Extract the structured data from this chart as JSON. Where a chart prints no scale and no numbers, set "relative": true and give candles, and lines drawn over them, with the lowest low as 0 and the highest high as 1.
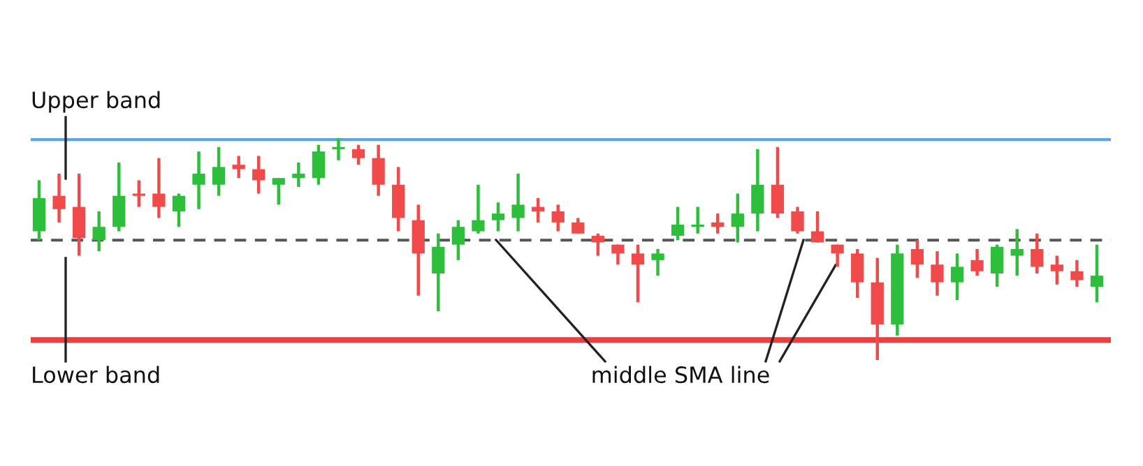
{
  "chart_data": {
    "type": "candlestick",
    "relative": true,
    "categories": [
      null,
      null,
      null,
      null,
      null,
      null,
      null,
      null,
      null,
      null,
      null,
      null,
      null,
      null,
      null,
      null,
      null,
      null,
      null,
      null,
      null,
      null,
      null,
      null,
      null,
      null,
      null,
      null,
      null,
      null,
      null,
      null,
      null,
      null,
      null,
      null,
      null,
      null,
      null,
      null,
      null,
      null,
      null,
      null,
      null,
      null,
      null,
      null,
      null,
      null,
      null,
      null,
      null,
      null
    ],
    "ohlc": [
      [
        0.58,
        0.81,
        0.54,
        0.73
      ],
      [
        0.74,
        0.84,
        0.62,
        0.68
      ],
      [
        0.69,
        0.84,
        0.47,
        0.55
      ],
      [
        0.54,
        0.67,
        0.49,
        0.6
      ],
      [
        0.6,
        0.89,
        0.58,
        0.74
      ],
      [
        0.75,
        0.81,
        0.69,
        0.74
      ],
      [
        0.75,
        0.91,
        0.64,
        0.69
      ],
      [
        0.67,
        0.75,
        0.6,
        0.74
      ],
      [
        0.79,
        0.94,
        0.68,
        0.84
      ],
      [
        0.79,
        0.96,
        0.74,
        0.87
      ],
      [
        0.88,
        0.92,
        0.82,
        0.86
      ],
      [
        0.86,
        0.92,
        0.75,
        0.81
      ],
      [
        0.79,
        0.82,
        0.7,
        0.82
      ],
      [
        0.82,
        0.89,
        0.78,
        0.84
      ],
      [
        0.82,
        0.97,
        0.79,
        0.94
      ],
      [
        0.95,
        1.0,
        0.9,
        0.96
      ],
      [
        0.95,
        0.97,
        0.88,
        0.91
      ],
      [
        0.91,
        0.97,
        0.74,
        0.79
      ],
      [
        0.79,
        0.87,
        0.58,
        0.64
      ],
      [
        0.63,
        0.7,
        0.29,
        0.48
      ],
      [
        0.39,
        0.57,
        0.22,
        0.51
      ],
      [
        0.52,
        0.63,
        0.45,
        0.6
      ],
      [
        0.58,
        0.79,
        0.57,
        0.63
      ],
      [
        0.63,
        0.71,
        0.58,
        0.66
      ],
      [
        0.64,
        0.84,
        0.58,
        0.7
      ],
      [
        0.69,
        0.73,
        0.62,
        0.67
      ],
      [
        0.67,
        0.7,
        0.58,
        0.62
      ],
      [
        0.62,
        0.64,
        0.57,
        0.57
      ],
      [
        0.56,
        0.57,
        0.47,
        0.53
      ],
      [
        0.52,
        0.52,
        0.43,
        0.48
      ],
      [
        0.48,
        0.52,
        0.26,
        0.43
      ],
      [
        0.45,
        0.5,
        0.38,
        0.48
      ],
      [
        0.56,
        0.69,
        0.54,
        0.61
      ],
      [
        0.6,
        0.69,
        0.57,
        0.61
      ],
      [
        0.62,
        0.66,
        0.57,
        0.6
      ],
      [
        0.6,
        0.75,
        0.53,
        0.66
      ],
      [
        0.66,
        0.95,
        0.58,
        0.79
      ],
      [
        0.79,
        0.96,
        0.64,
        0.66
      ],
      [
        0.67,
        0.69,
        0.57,
        0.58
      ],
      [
        0.58,
        0.67,
        0.53,
        0.53
      ],
      [
        0.52,
        0.52,
        0.42,
        0.48
      ],
      [
        0.48,
        0.5,
        0.28,
        0.35
      ],
      [
        0.35,
        0.46,
        0.0,
        0.16
      ],
      [
        0.16,
        0.52,
        0.11,
        0.48
      ],
      [
        0.5,
        0.54,
        0.37,
        0.43
      ],
      [
        0.43,
        0.49,
        0.29,
        0.35
      ],
      [
        0.35,
        0.48,
        0.27,
        0.42
      ],
      [
        0.45,
        0.5,
        0.38,
        0.4
      ],
      [
        0.39,
        0.52,
        0.33,
        0.51
      ],
      [
        0.47,
        0.59,
        0.38,
        0.5
      ],
      [
        0.5,
        0.57,
        0.39,
        0.42
      ],
      [
        0.43,
        0.47,
        0.34,
        0.4
      ],
      [
        0.4,
        0.45,
        0.33,
        0.36
      ],
      [
        0.33,
        0.52,
        0.26,
        0.38
      ]
    ],
    "colors": [
      "#2dbe3b",
      "#f04a4a",
      "#f04a4a",
      "#2dbe3b",
      "#2dbe3b",
      "#f04a4a",
      "#f04a4a",
      "#2dbe3b",
      "#2dbe3b",
      "#2dbe3b",
      "#f04a4a",
      "#f04a4a",
      "#2dbe3b",
      "#2dbe3b",
      "#2dbe3b",
      "#2dbe3b",
      "#f04a4a",
      "#f04a4a",
      "#f04a4a",
      "#f04a4a",
      "#2dbe3b",
      "#2dbe3b",
      "#2dbe3b",
      "#2dbe3b",
      "#2dbe3b",
      "#f04a4a",
      "#f04a4a",
      "#f04a4a",
      "#f04a4a",
      "#f04a4a",
      "#f04a4a",
      "#2dbe3b",
      "#2dbe3b",
      "#2dbe3b",
      "#f04a4a",
      "#2dbe3b",
      "#2dbe3b",
      "#f04a4a",
      "#f04a4a",
      "#f04a4a",
      "#f04a4a",
      "#f04a4a",
      "#f04a4a",
      "#2dbe3b",
      "#f04a4a",
      "#f04a4a",
      "#2dbe3b",
      "#f04a4a",
      "#2dbe3b",
      "#2dbe3b",
      "#f04a4a",
      "#f04a4a",
      "#f04a4a",
      "#2dbe3b"
    ],
    "ref_lines": [
      {
        "axis": "y",
        "value": 1.0,
        "label": "Upper band",
        "color": "#5aa9e6",
        "line_style": "solid"
      },
      {
        "axis": "y",
        "value": 0.09,
        "label": "Lower band",
        "color": "#e8413f",
        "line_style": "solid"
      },
      {
        "axis": "y",
        "value": 0.54,
        "label": "middle SMA line",
        "color": "#555555",
        "line_style": "dashed"
      }
    ]
  }
}
